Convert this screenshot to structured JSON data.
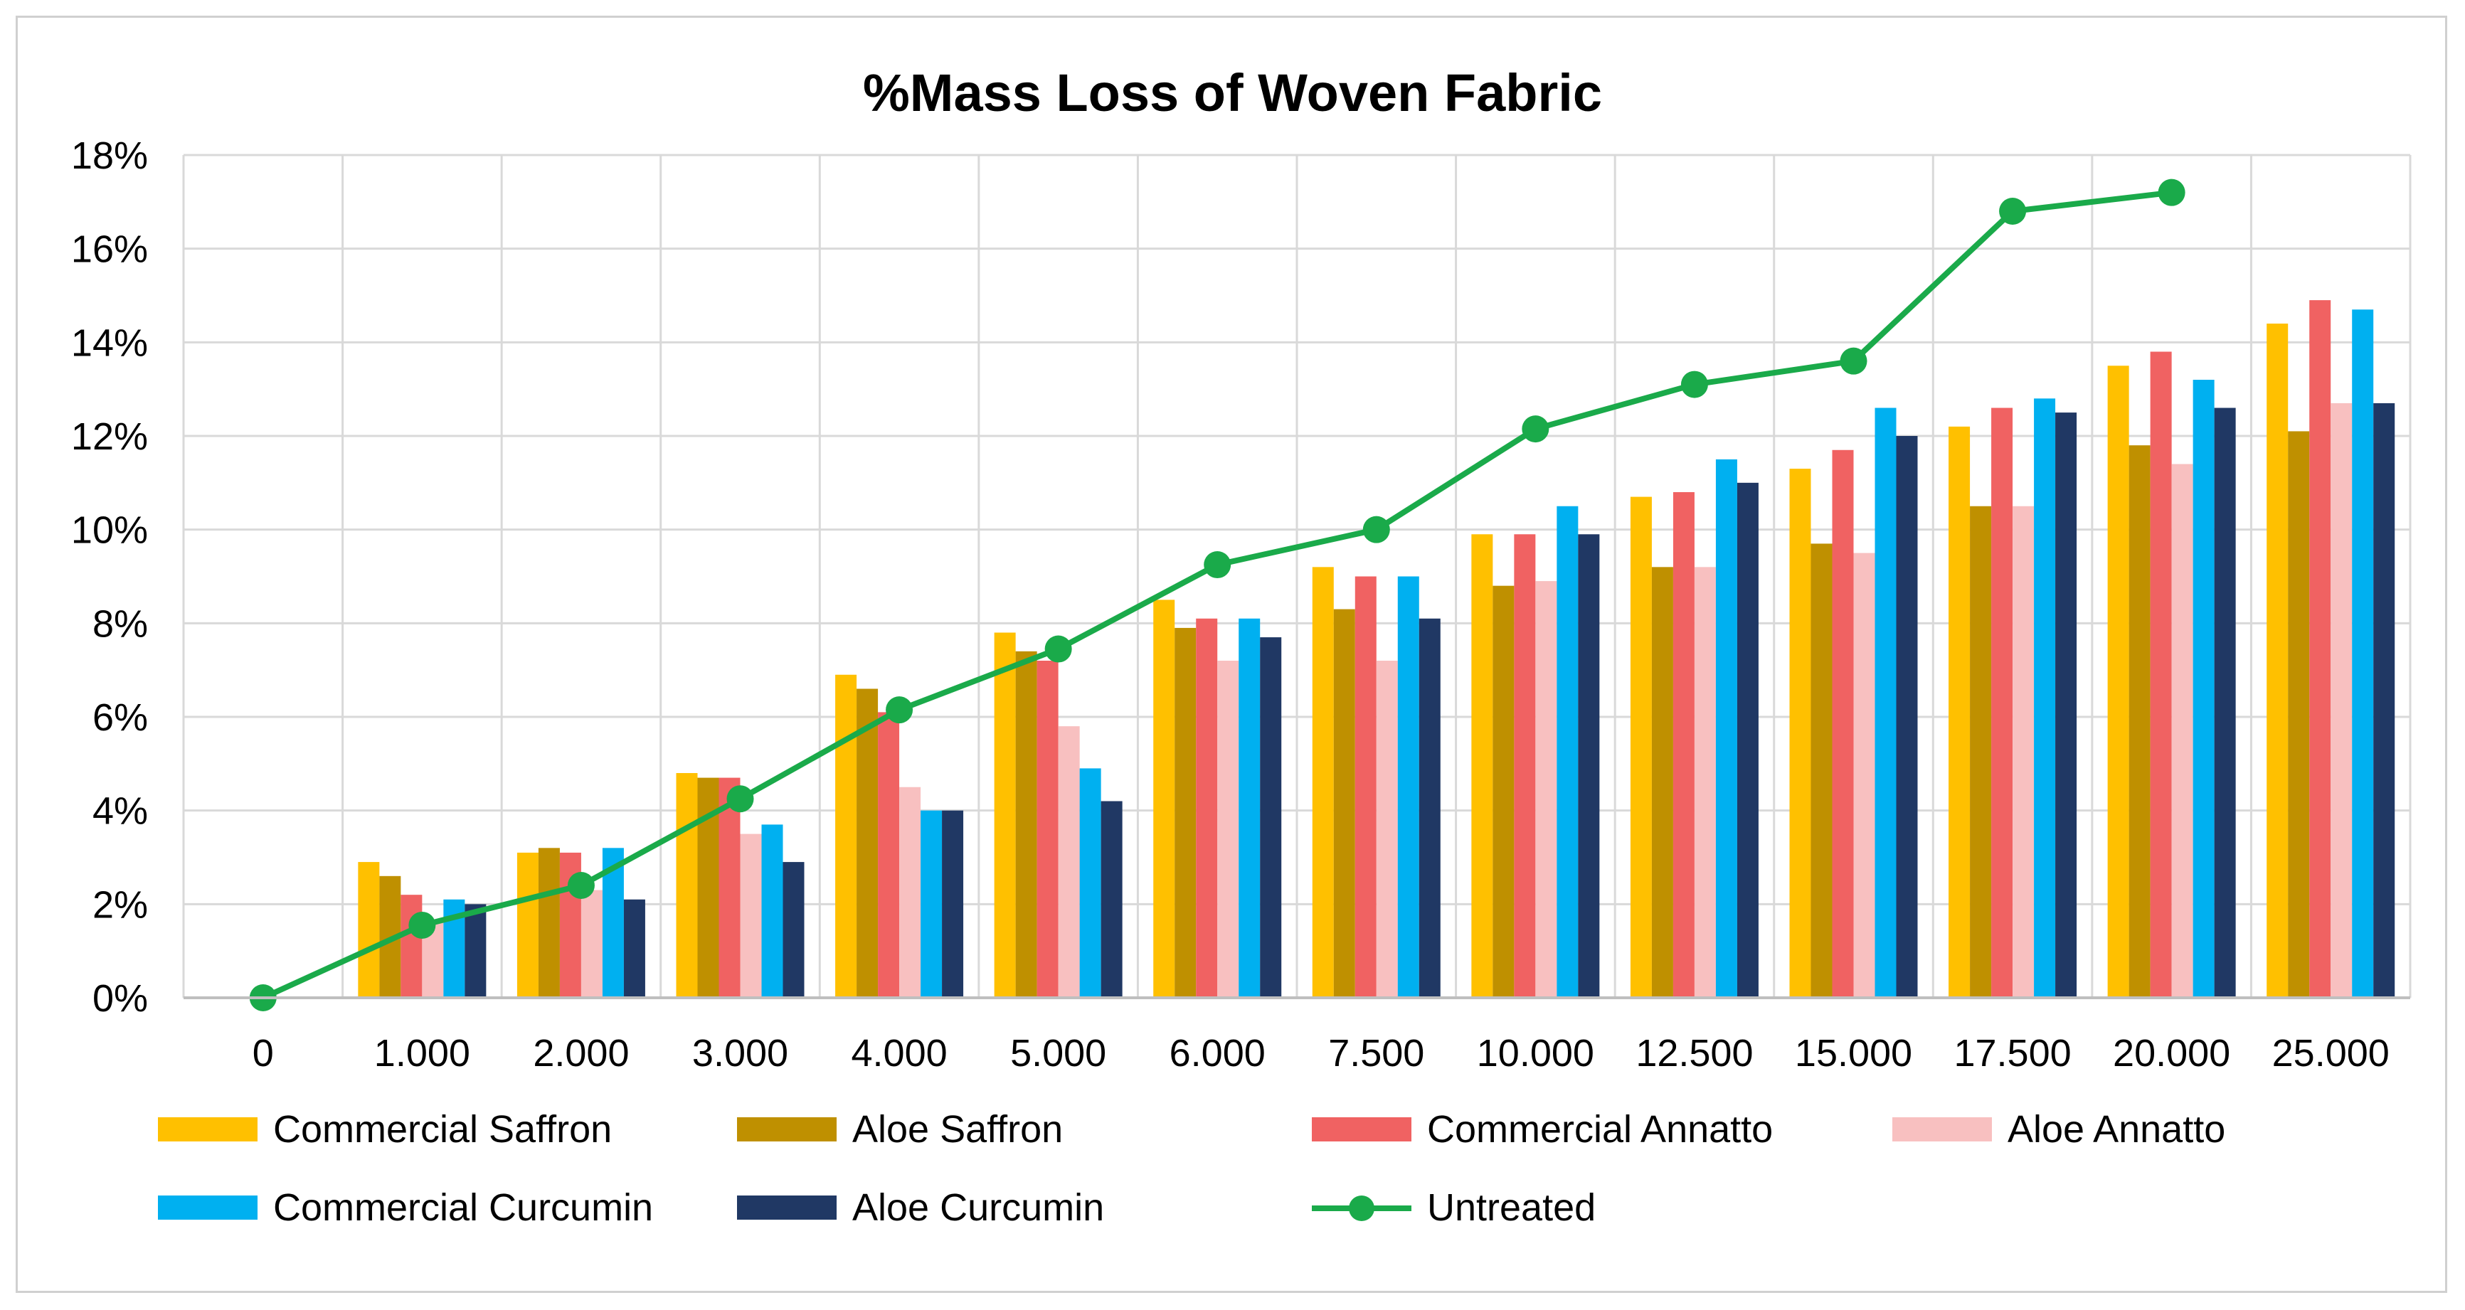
{
  "chart_data": {
    "type": "bar",
    "title": "%Mass Loss of Woven Fabric",
    "xlabel": "",
    "ylabel": "",
    "ylim": [
      0,
      18
    ],
    "y_ticks": [
      0,
      2,
      4,
      6,
      8,
      10,
      12,
      14,
      16,
      18
    ],
    "y_tick_labels": [
      "0%",
      "2%",
      "4%",
      "6%",
      "8%",
      "10%",
      "12%",
      "14%",
      "16%",
      "18%"
    ],
    "grid": true,
    "legend_position": "bottom",
    "categories": [
      "0",
      "1.000",
      "2.000",
      "3.000",
      "4.000",
      "5.000",
      "6.000",
      "7.500",
      "10.000",
      "12.500",
      "15.000",
      "17.500",
      "20.000",
      "25.000"
    ],
    "series": [
      {
        "name": "Commercial Saffron",
        "kind": "bar",
        "color": "#FFC000",
        "values": [
          0,
          2.9,
          3.1,
          4.8,
          6.9,
          7.8,
          8.5,
          9.2,
          9.9,
          10.7,
          11.3,
          12.2,
          13.5,
          14.4
        ]
      },
      {
        "name": "Aloe Saffron",
        "kind": "bar",
        "color": "#BF9000",
        "values": [
          0,
          2.6,
          3.2,
          4.7,
          6.6,
          7.4,
          7.9,
          8.3,
          8.8,
          9.2,
          9.7,
          10.5,
          11.8,
          12.1
        ]
      },
      {
        "name": "Commercial Annatto",
        "kind": "bar",
        "color": "#F06262",
        "values": [
          0,
          2.2,
          3.1,
          4.7,
          6.1,
          7.2,
          8.1,
          9.0,
          9.9,
          10.8,
          11.7,
          12.6,
          13.8,
          14.9
        ]
      },
      {
        "name": "Aloe Annatto",
        "kind": "bar",
        "color": "#F8C0C0",
        "values": [
          0,
          1.6,
          2.3,
          3.5,
          4.5,
          5.8,
          7.2,
          7.2,
          8.9,
          9.2,
          9.5,
          10.5,
          11.4,
          12.7
        ]
      },
      {
        "name": "Commercial Curcumin",
        "kind": "bar",
        "color": "#00B0F0",
        "values": [
          0,
          2.1,
          3.2,
          3.7,
          4.0,
          4.9,
          8.1,
          9.0,
          10.5,
          11.5,
          12.6,
          12.8,
          13.2,
          14.7
        ]
      },
      {
        "name": "Aloe Curcumin",
        "kind": "bar",
        "color": "#203864",
        "values": [
          0,
          2.0,
          2.1,
          2.9,
          4.0,
          4.2,
          7.7,
          8.1,
          9.9,
          11.0,
          12.0,
          12.5,
          12.6,
          12.7
        ]
      },
      {
        "name": "Untreated",
        "kind": "line",
        "color": "#1AAA4A",
        "values": [
          0,
          1.55,
          2.4,
          4.25,
          6.15,
          7.45,
          9.25,
          10.0,
          12.15,
          13.1,
          13.6,
          16.8,
          17.2,
          null
        ]
      }
    ]
  }
}
